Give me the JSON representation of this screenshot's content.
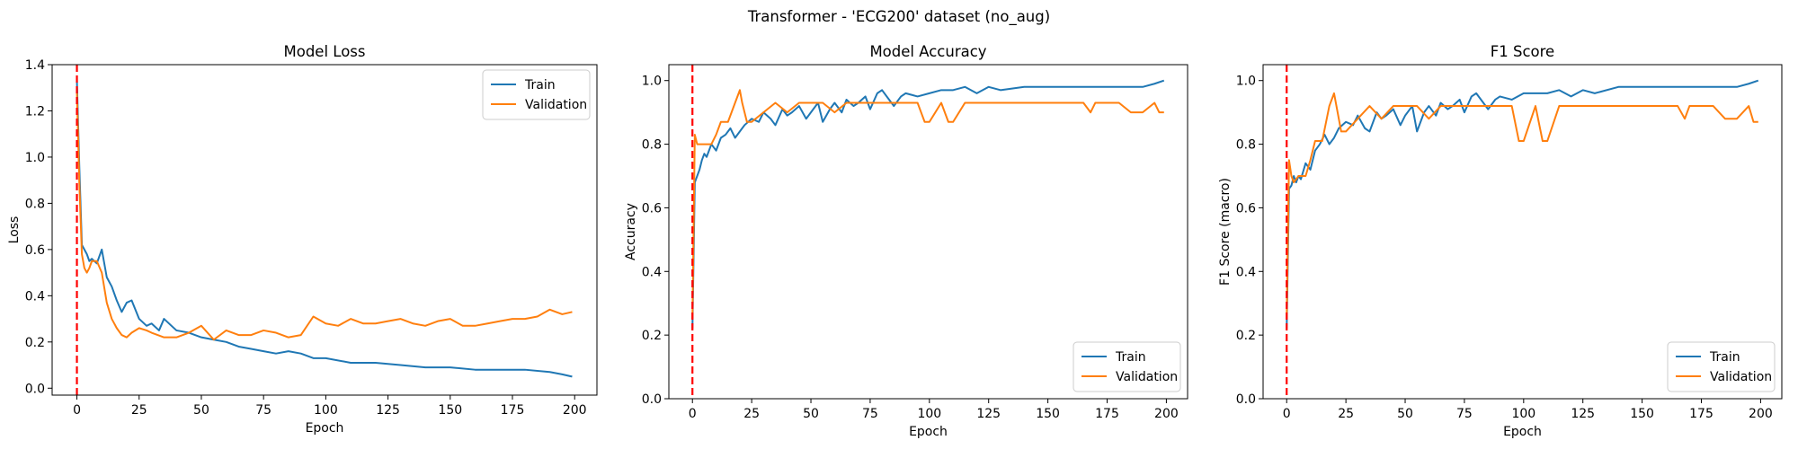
{
  "suptitle": "Transformer - 'ECG200' dataset (no_aug)",
  "colors": {
    "train": "#1f77b4",
    "validation": "#ff7f0e",
    "marker": "#ff0000"
  },
  "chart_data": [
    {
      "type": "line",
      "title": "Model Loss",
      "xlabel": "Epoch",
      "ylabel": "Loss",
      "xlim": [
        -9.95,
        208.95
      ],
      "ylim": [
        -0.03,
        1.4
      ],
      "xticks": [
        0,
        25,
        50,
        75,
        100,
        125,
        150,
        175,
        200
      ],
      "yticks": [
        0.0,
        0.2,
        0.4,
        0.6,
        0.8,
        1.0,
        1.2,
        1.4
      ],
      "ytick_labels": [
        "0.0",
        "0.2",
        "0.4",
        "0.6",
        "0.8",
        "1.0",
        "1.2",
        "1.4"
      ],
      "grid": false,
      "legend_loc": "upper right",
      "marker_line_x": 0,
      "series": [
        {
          "name": "Train",
          "color": "#1f77b4",
          "x": [
            0,
            1,
            2,
            3,
            4,
            5,
            6,
            8,
            10,
            12,
            14,
            16,
            18,
            20,
            22,
            25,
            28,
            30,
            33,
            35,
            38,
            40,
            45,
            50,
            55,
            60,
            65,
            70,
            75,
            80,
            85,
            90,
            95,
            100,
            110,
            120,
            130,
            140,
            150,
            160,
            170,
            180,
            190,
            195,
            199
          ],
          "values": [
            1.33,
            0.95,
            0.62,
            0.6,
            0.58,
            0.55,
            0.56,
            0.54,
            0.6,
            0.48,
            0.44,
            0.38,
            0.33,
            0.37,
            0.38,
            0.3,
            0.27,
            0.28,
            0.25,
            0.3,
            0.27,
            0.25,
            0.24,
            0.22,
            0.21,
            0.2,
            0.18,
            0.17,
            0.16,
            0.15,
            0.16,
            0.15,
            0.13,
            0.13,
            0.11,
            0.11,
            0.1,
            0.09,
            0.09,
            0.08,
            0.08,
            0.08,
            0.07,
            0.06,
            0.05
          ]
        },
        {
          "name": "Validation",
          "color": "#ff7f0e",
          "x": [
            0,
            1,
            2,
            3,
            4,
            5,
            6,
            8,
            10,
            12,
            14,
            16,
            18,
            20,
            22,
            25,
            28,
            30,
            35,
            40,
            45,
            50,
            55,
            60,
            65,
            70,
            75,
            80,
            85,
            90,
            95,
            100,
            105,
            110,
            115,
            120,
            125,
            130,
            135,
            140,
            145,
            150,
            155,
            160,
            165,
            170,
            175,
            180,
            185,
            190,
            195,
            199
          ],
          "values": [
            1.28,
            0.88,
            0.58,
            0.52,
            0.5,
            0.52,
            0.55,
            0.55,
            0.5,
            0.37,
            0.3,
            0.26,
            0.23,
            0.22,
            0.24,
            0.26,
            0.25,
            0.24,
            0.22,
            0.22,
            0.24,
            0.27,
            0.21,
            0.25,
            0.23,
            0.23,
            0.25,
            0.24,
            0.22,
            0.23,
            0.31,
            0.28,
            0.27,
            0.3,
            0.28,
            0.28,
            0.29,
            0.3,
            0.28,
            0.27,
            0.29,
            0.3,
            0.27,
            0.27,
            0.28,
            0.29,
            0.3,
            0.3,
            0.31,
            0.34,
            0.32,
            0.33
          ]
        }
      ]
    },
    {
      "type": "line",
      "title": "Model Accuracy",
      "xlabel": "Epoch",
      "ylabel": "Accuracy",
      "xlim": [
        -9.95,
        208.95
      ],
      "ylim": [
        0.0,
        1.05
      ],
      "xticks": [
        0,
        25,
        50,
        75,
        100,
        125,
        150,
        175,
        200
      ],
      "yticks": [
        0.0,
        0.2,
        0.4,
        0.6,
        0.8,
        1.0
      ],
      "ytick_labels": [
        "0.0",
        "0.2",
        "0.4",
        "0.6",
        "0.8",
        "1.0"
      ],
      "grid": false,
      "legend_loc": "lower right",
      "marker_line_x": 0,
      "series": [
        {
          "name": "Train",
          "color": "#1f77b4",
          "x": [
            0,
            1,
            2,
            3,
            4,
            5,
            6,
            8,
            10,
            12,
            14,
            16,
            18,
            20,
            22,
            25,
            28,
            30,
            33,
            35,
            38,
            40,
            42,
            45,
            48,
            50,
            53,
            55,
            58,
            60,
            63,
            65,
            68,
            70,
            73,
            75,
            78,
            80,
            83,
            85,
            88,
            90,
            95,
            100,
            105,
            110,
            115,
            120,
            125,
            130,
            140,
            150,
            160,
            170,
            180,
            190,
            195,
            199
          ],
          "values": [
            0.22,
            0.68,
            0.7,
            0.72,
            0.75,
            0.77,
            0.76,
            0.8,
            0.78,
            0.82,
            0.83,
            0.85,
            0.82,
            0.84,
            0.86,
            0.88,
            0.87,
            0.9,
            0.88,
            0.86,
            0.91,
            0.89,
            0.9,
            0.92,
            0.88,
            0.9,
            0.93,
            0.87,
            0.91,
            0.93,
            0.9,
            0.94,
            0.92,
            0.93,
            0.95,
            0.91,
            0.96,
            0.97,
            0.94,
            0.92,
            0.95,
            0.96,
            0.95,
            0.96,
            0.97,
            0.97,
            0.98,
            0.96,
            0.98,
            0.97,
            0.98,
            0.98,
            0.98,
            0.98,
            0.98,
            0.98,
            0.99,
            1.0
          ]
        },
        {
          "name": "Validation",
          "color": "#ff7f0e",
          "x": [
            0,
            1,
            2,
            3,
            5,
            8,
            10,
            12,
            15,
            18,
            20,
            21,
            23,
            25,
            30,
            35,
            40,
            45,
            50,
            55,
            60,
            65,
            70,
            75,
            80,
            85,
            90,
            95,
            98,
            100,
            105,
            108,
            110,
            115,
            120,
            125,
            130,
            135,
            140,
            145,
            150,
            155,
            160,
            165,
            168,
            170,
            175,
            180,
            185,
            190,
            195,
            197,
            199
          ],
          "values": [
            0.25,
            0.83,
            0.8,
            0.8,
            0.8,
            0.8,
            0.83,
            0.87,
            0.87,
            0.93,
            0.97,
            0.93,
            0.87,
            0.87,
            0.9,
            0.93,
            0.9,
            0.93,
            0.93,
            0.93,
            0.9,
            0.93,
            0.93,
            0.93,
            0.93,
            0.93,
            0.93,
            0.93,
            0.87,
            0.87,
            0.93,
            0.87,
            0.87,
            0.93,
            0.93,
            0.93,
            0.93,
            0.93,
            0.93,
            0.93,
            0.93,
            0.93,
            0.93,
            0.93,
            0.9,
            0.93,
            0.93,
            0.93,
            0.9,
            0.9,
            0.93,
            0.9,
            0.9
          ]
        }
      ]
    },
    {
      "type": "line",
      "title": "F1 Score",
      "xlabel": "Epoch",
      "ylabel": "F1 Score (macro)",
      "xlim": [
        -9.95,
        208.95
      ],
      "ylim": [
        0.0,
        1.05
      ],
      "xticks": [
        0,
        25,
        50,
        75,
        100,
        125,
        150,
        175,
        200
      ],
      "yticks": [
        0.0,
        0.2,
        0.4,
        0.6,
        0.8,
        1.0
      ],
      "ytick_labels": [
        "0.0",
        "0.2",
        "0.4",
        "0.6",
        "0.8",
        "1.0"
      ],
      "grid": false,
      "legend_loc": "lower right",
      "marker_line_x": 0,
      "series": [
        {
          "name": "Train",
          "color": "#1f77b4",
          "x": [
            0,
            1,
            2,
            3,
            4,
            5,
            6,
            8,
            10,
            12,
            14,
            16,
            18,
            20,
            22,
            25,
            28,
            30,
            33,
            35,
            38,
            40,
            42,
            45,
            48,
            50,
            53,
            55,
            58,
            60,
            63,
            65,
            68,
            70,
            73,
            75,
            78,
            80,
            83,
            85,
            88,
            90,
            95,
            100,
            105,
            110,
            115,
            120,
            125,
            130,
            140,
            150,
            160,
            170,
            180,
            190,
            195,
            199
          ],
          "values": [
            0.22,
            0.66,
            0.67,
            0.7,
            0.68,
            0.7,
            0.69,
            0.74,
            0.72,
            0.78,
            0.8,
            0.83,
            0.8,
            0.82,
            0.85,
            0.87,
            0.86,
            0.89,
            0.85,
            0.84,
            0.9,
            0.88,
            0.89,
            0.91,
            0.86,
            0.89,
            0.92,
            0.84,
            0.9,
            0.92,
            0.89,
            0.93,
            0.91,
            0.92,
            0.94,
            0.9,
            0.95,
            0.96,
            0.93,
            0.91,
            0.94,
            0.95,
            0.94,
            0.96,
            0.96,
            0.96,
            0.97,
            0.95,
            0.97,
            0.96,
            0.98,
            0.98,
            0.98,
            0.98,
            0.98,
            0.98,
            0.99,
            1.0
          ]
        },
        {
          "name": "Validation",
          "color": "#ff7f0e",
          "x": [
            0,
            1,
            2,
            3,
            5,
            8,
            10,
            12,
            15,
            18,
            20,
            21,
            23,
            25,
            30,
            35,
            40,
            45,
            50,
            55,
            60,
            65,
            70,
            75,
            80,
            85,
            90,
            95,
            98,
            100,
            105,
            108,
            110,
            115,
            120,
            125,
            130,
            135,
            140,
            145,
            150,
            155,
            160,
            165,
            168,
            170,
            175,
            180,
            185,
            190,
            195,
            197,
            199
          ],
          "values": [
            0.25,
            0.75,
            0.7,
            0.68,
            0.7,
            0.7,
            0.75,
            0.81,
            0.81,
            0.92,
            0.96,
            0.92,
            0.84,
            0.84,
            0.88,
            0.92,
            0.88,
            0.92,
            0.92,
            0.92,
            0.88,
            0.92,
            0.92,
            0.92,
            0.92,
            0.92,
            0.92,
            0.92,
            0.81,
            0.81,
            0.92,
            0.81,
            0.81,
            0.92,
            0.92,
            0.92,
            0.92,
            0.92,
            0.92,
            0.92,
            0.92,
            0.92,
            0.92,
            0.92,
            0.88,
            0.92,
            0.92,
            0.92,
            0.88,
            0.88,
            0.92,
            0.87,
            0.87
          ]
        }
      ]
    }
  ]
}
